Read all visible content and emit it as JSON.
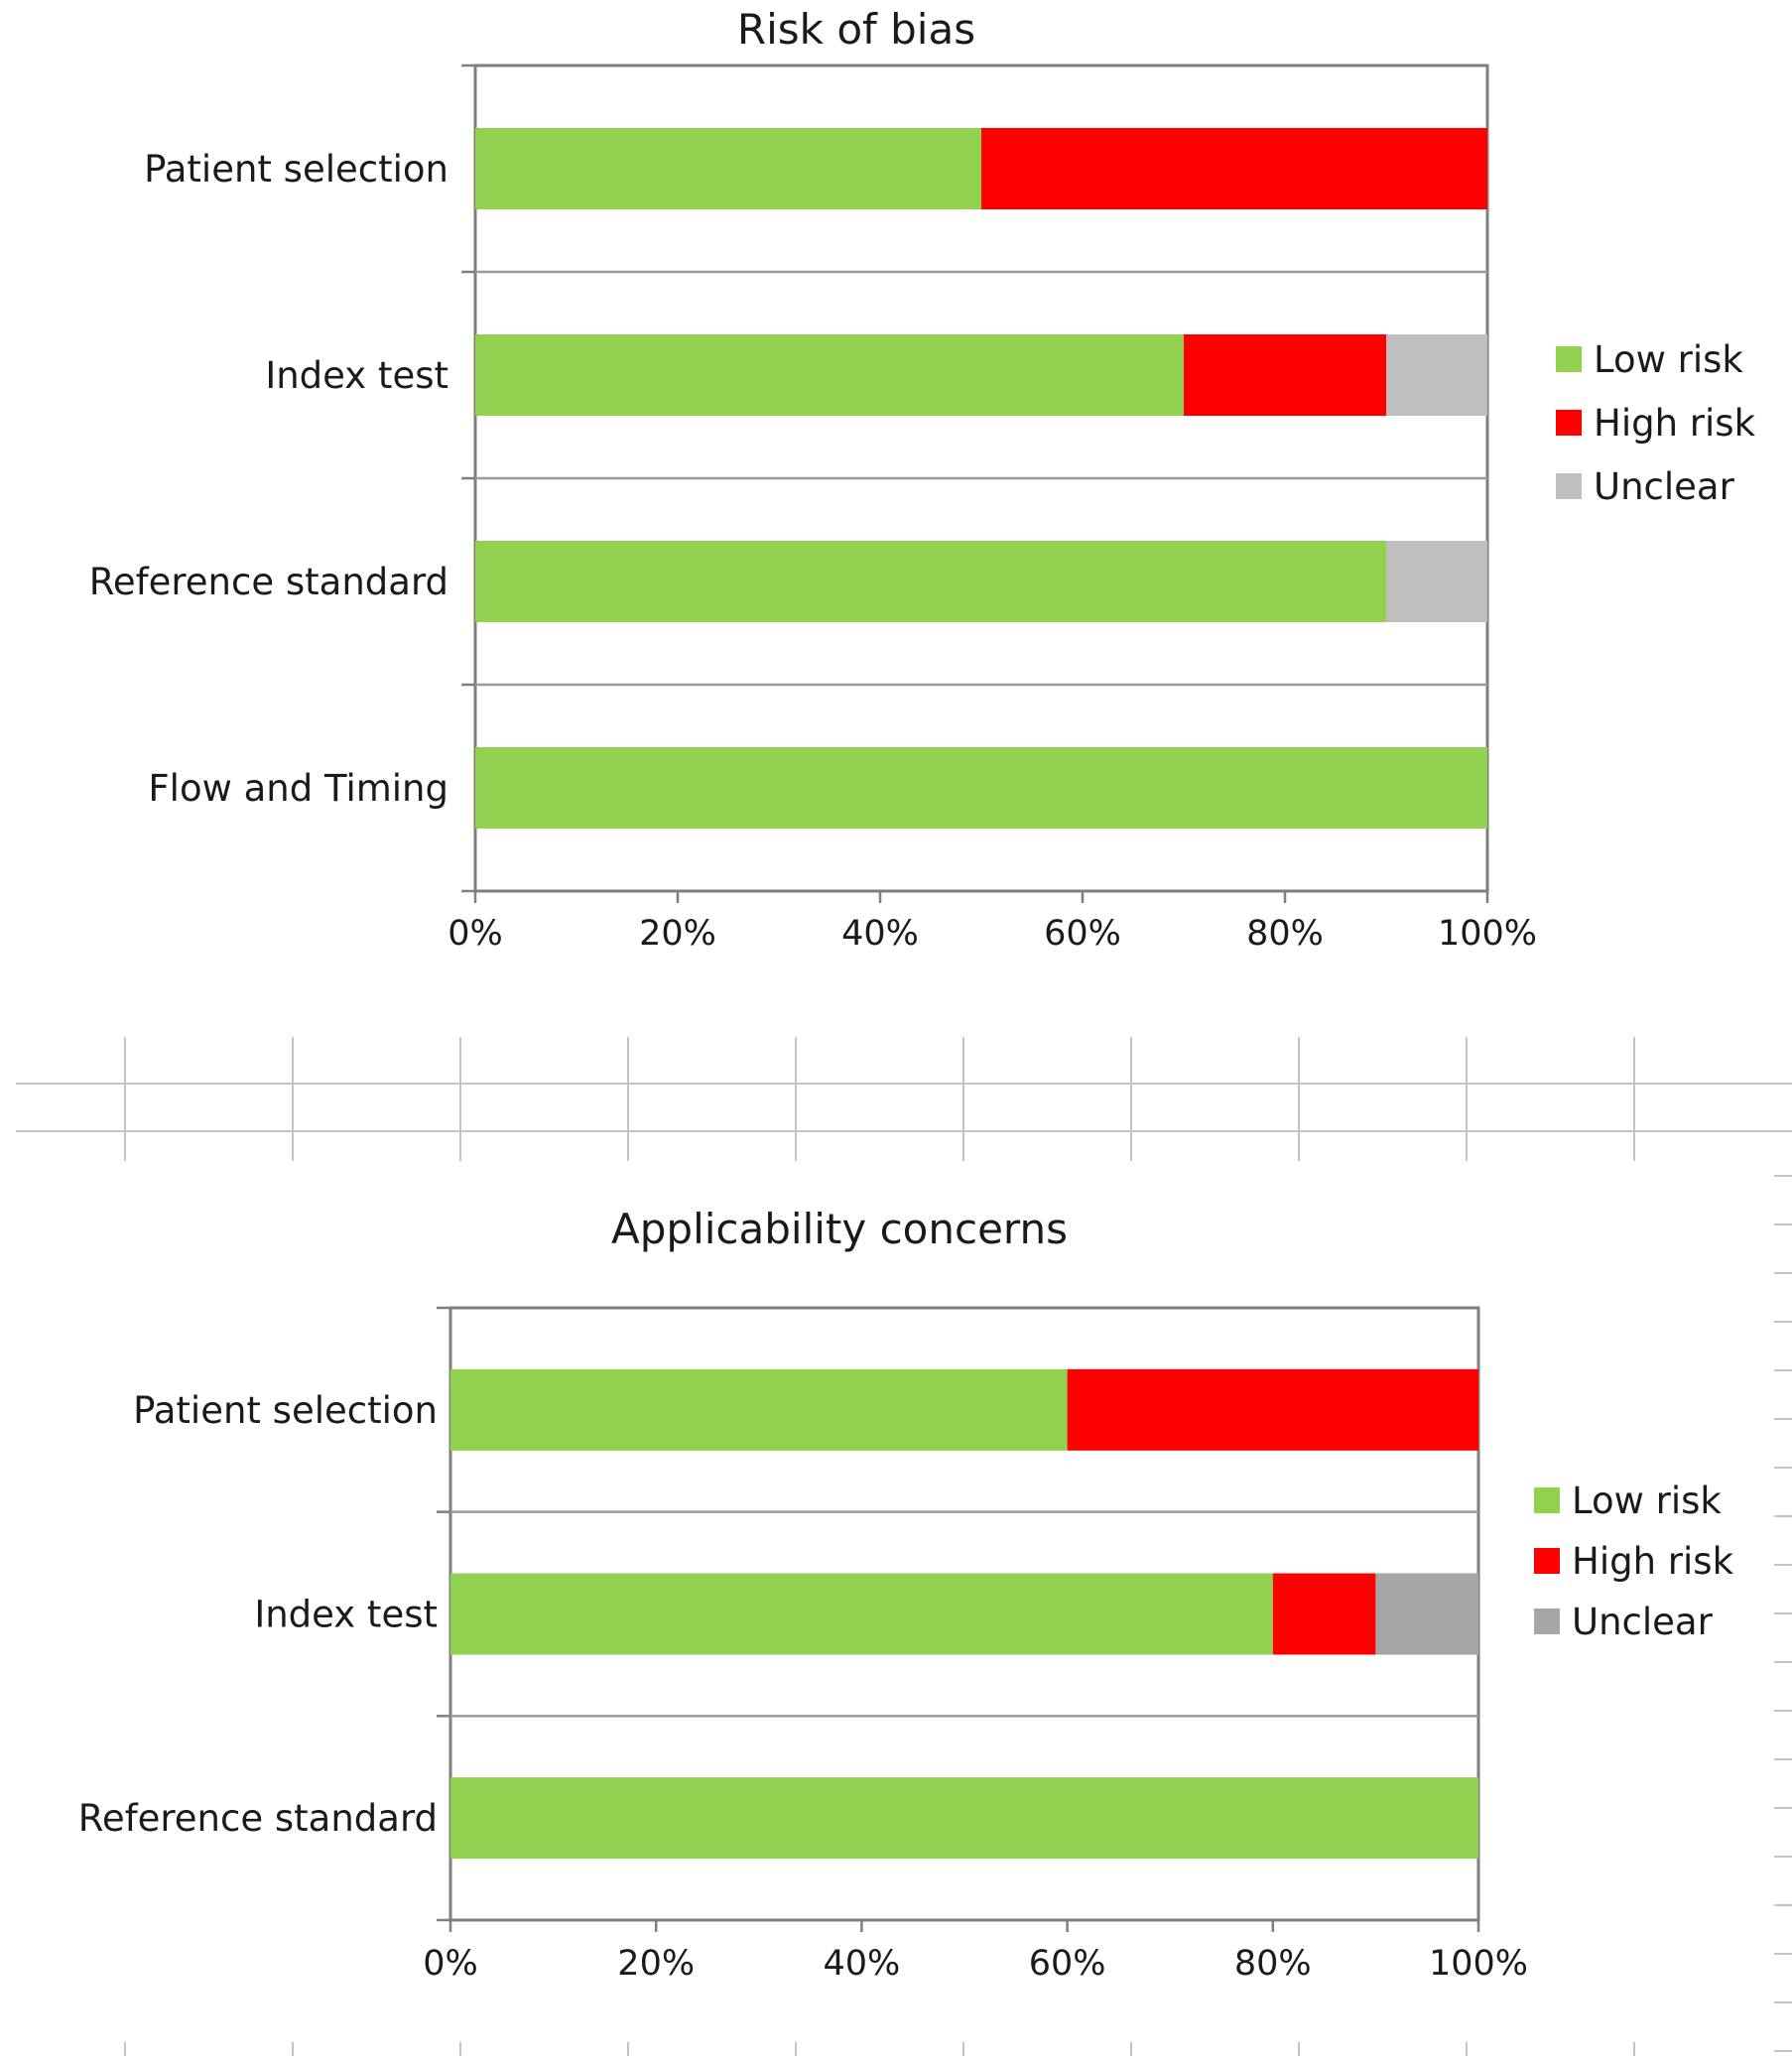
{
  "chart_data": [
    {
      "type": "bar",
      "orientation": "horizontal",
      "stacked": "percent",
      "title": "Risk of bias",
      "categories": [
        "Patient selection",
        "Index test",
        "Reference standard",
        "Flow and Timing"
      ],
      "series": [
        {
          "name": "Low risk",
          "color": "#92d050",
          "values": [
            50,
            70,
            90,
            100
          ]
        },
        {
          "name": "High risk",
          "color": "#ff0000",
          "values": [
            50,
            20,
            0,
            0
          ]
        },
        {
          "name": "Unclear",
          "color": "#bfbfbf",
          "values": [
            0,
            10,
            10,
            0
          ]
        }
      ],
      "x_ticks": [
        "0%",
        "20%",
        "40%",
        "60%",
        "80%",
        "100%"
      ],
      "xlim": [
        0,
        100
      ],
      "legend_position": "right",
      "grid": false
    },
    {
      "type": "bar",
      "orientation": "horizontal",
      "stacked": "percent",
      "title": "Applicability concerns",
      "categories": [
        "Patient selection",
        "Index test",
        "Reference standard"
      ],
      "series": [
        {
          "name": "Low risk",
          "color": "#92d050",
          "values": [
            60,
            80,
            100
          ]
        },
        {
          "name": "High risk",
          "color": "#ff0000",
          "values": [
            40,
            10,
            0
          ]
        },
        {
          "name": "Unclear",
          "color": "#a6a6a6",
          "values": [
            0,
            10,
            0
          ]
        }
      ],
      "x_ticks": [
        "0%",
        "20%",
        "40%",
        "60%",
        "80%",
        "100%"
      ],
      "xlim": [
        0,
        100
      ],
      "legend_position": "right",
      "grid": false
    }
  ]
}
